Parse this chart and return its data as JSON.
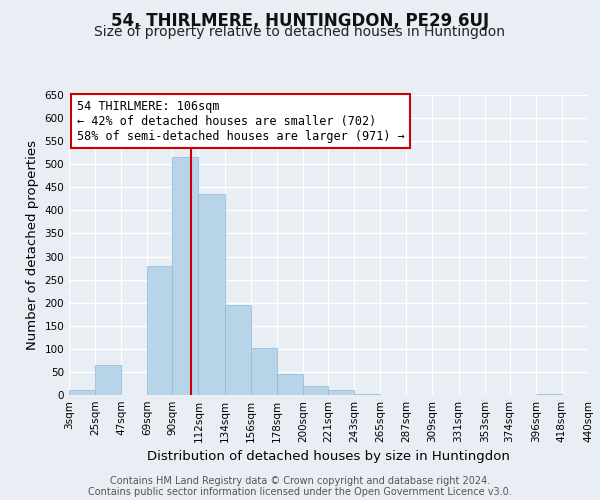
{
  "title": "54, THIRLMERE, HUNTINGDON, PE29 6UJ",
  "subtitle": "Size of property relative to detached houses in Huntingdon",
  "xlabel": "Distribution of detached houses by size in Huntingdon",
  "ylabel": "Number of detached properties",
  "footer_lines": [
    "Contains HM Land Registry data © Crown copyright and database right 2024.",
    "Contains public sector information licensed under the Open Government Licence v3.0."
  ],
  "bin_edges": [
    3,
    25,
    47,
    69,
    90,
    112,
    134,
    156,
    178,
    200,
    221,
    243,
    265,
    287,
    309,
    331,
    353,
    374,
    396,
    418,
    440
  ],
  "bin_labels": [
    "3sqm",
    "25sqm",
    "47sqm",
    "69sqm",
    "90sqm",
    "112sqm",
    "134sqm",
    "156sqm",
    "178sqm",
    "200sqm",
    "221sqm",
    "243sqm",
    "265sqm",
    "287sqm",
    "309sqm",
    "331sqm",
    "353sqm",
    "374sqm",
    "396sqm",
    "418sqm",
    "440sqm"
  ],
  "bar_heights": [
    10,
    65,
    0,
    280,
    515,
    435,
    195,
    102,
    46,
    20,
    10,
    2,
    0,
    0,
    0,
    0,
    0,
    0,
    3,
    0,
    0
  ],
  "bar_color": "#b8d4e8",
  "bar_edge_color": "#90b8d8",
  "ylim": [
    0,
    650
  ],
  "yticks": [
    0,
    50,
    100,
    150,
    200,
    250,
    300,
    350,
    400,
    450,
    500,
    550,
    600,
    650
  ],
  "property_line_x": 106,
  "property_line_color": "#cc0000",
  "annotation_line1": "54 THIRLMERE: 106sqm",
  "annotation_line2": "← 42% of detached houses are smaller (702)",
  "annotation_line3": "58% of semi-detached houses are larger (971) →",
  "annotation_box_color": "#ffffff",
  "annotation_box_edge": "#cc0000",
  "background_color": "#e8eef4",
  "plot_background": "#e8eef4",
  "grid_color": "#ffffff",
  "title_fontsize": 12,
  "subtitle_fontsize": 10,
  "axis_label_fontsize": 9.5,
  "tick_fontsize": 7.5,
  "annotation_fontsize": 8.5,
  "footer_fontsize": 7
}
